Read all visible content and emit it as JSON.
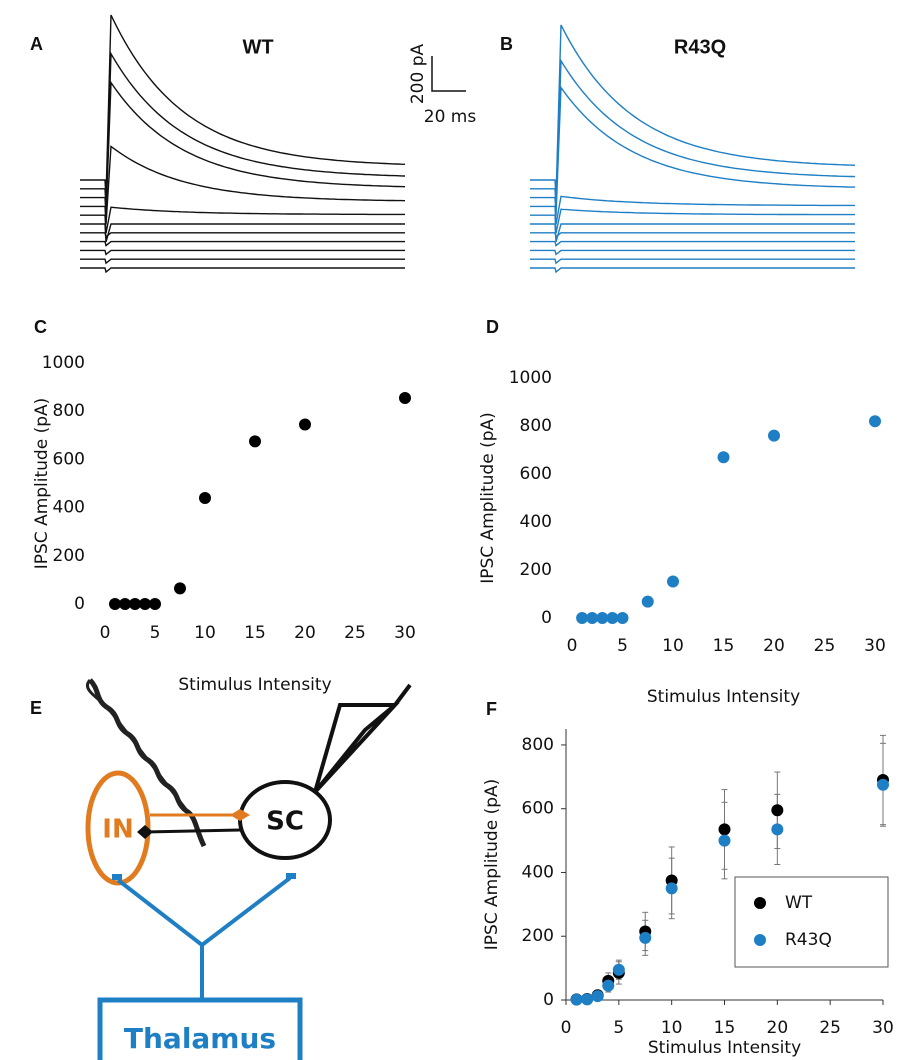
{
  "panel_labels": [
    "A",
    "B",
    "C",
    "D",
    "E",
    "F"
  ],
  "traces": {
    "titles": [
      "WT",
      "R43Q"
    ],
    "scale_y": "200 pA",
    "scale_x": "20 ms"
  },
  "diagram": {
    "nodes": [
      "IN",
      "SC",
      "Thalamus"
    ]
  },
  "chart_data": [
    {
      "type": "scatter",
      "xlabel": "Stimulus Intensity",
      "ylabel": "IPSC Amplitude (pA)",
      "x": [
        1,
        2,
        3,
        4,
        5,
        7.5,
        10,
        15,
        20,
        30
      ],
      "series": [
        {
          "color": "#000000",
          "values": [
            0,
            0,
            0,
            0,
            0,
            65,
            440,
            675,
            745,
            855
          ]
        }
      ],
      "xlim": [
        0,
        30
      ],
      "xticks": [
        0,
        5,
        10,
        15,
        20,
        25,
        30
      ],
      "ylim": [
        0,
        1000
      ],
      "yticks": [
        0,
        200,
        400,
        600,
        800,
        1000
      ]
    },
    {
      "type": "scatter",
      "xlabel": "Stimulus Intensity",
      "ylabel": "IPSC Amplitude (pA)",
      "x": [
        1,
        2,
        3,
        4,
        5,
        7.5,
        10,
        15,
        20,
        30
      ],
      "series": [
        {
          "color": "#1f7fc4",
          "values": [
            0,
            0,
            0,
            0,
            0,
            68,
            152,
            670,
            760,
            820
          ]
        }
      ],
      "xlim": [
        0,
        30
      ],
      "xticks": [
        0,
        5,
        10,
        15,
        20,
        25,
        30
      ],
      "ylim": [
        0,
        1000
      ],
      "yticks": [
        0,
        200,
        400,
        600,
        800,
        1000
      ]
    },
    {
      "type": "scatter",
      "xlabel": "Stimulus Intensity",
      "ylabel": "IPSC Amplitude (pA)",
      "x": [
        1,
        2,
        3,
        4,
        5,
        7.5,
        10,
        15,
        20,
        30
      ],
      "series": [
        {
          "name": "WT",
          "color": "#000000",
          "values": [
            2,
            3,
            15,
            60,
            85,
            215,
            375,
            535,
            595,
            690
          ],
          "error": [
            2,
            3,
            8,
            25,
            35,
            60,
            105,
            125,
            120,
            140
          ]
        },
        {
          "name": "R43Q",
          "color": "#1f7fc4",
          "values": [
            1,
            2,
            12,
            45,
            95,
            195,
            350,
            500,
            535,
            675
          ],
          "error": [
            2,
            3,
            8,
            20,
            30,
            55,
            95,
            120,
            110,
            130
          ]
        }
      ],
      "xlim": [
        0,
        30
      ],
      "xticks": [
        0,
        5,
        10,
        15,
        20,
        25,
        30
      ],
      "ylim": [
        0,
        850
      ],
      "yticks": [
        0,
        200,
        400,
        600,
        800
      ],
      "axes": true,
      "legend": "lower right"
    }
  ]
}
